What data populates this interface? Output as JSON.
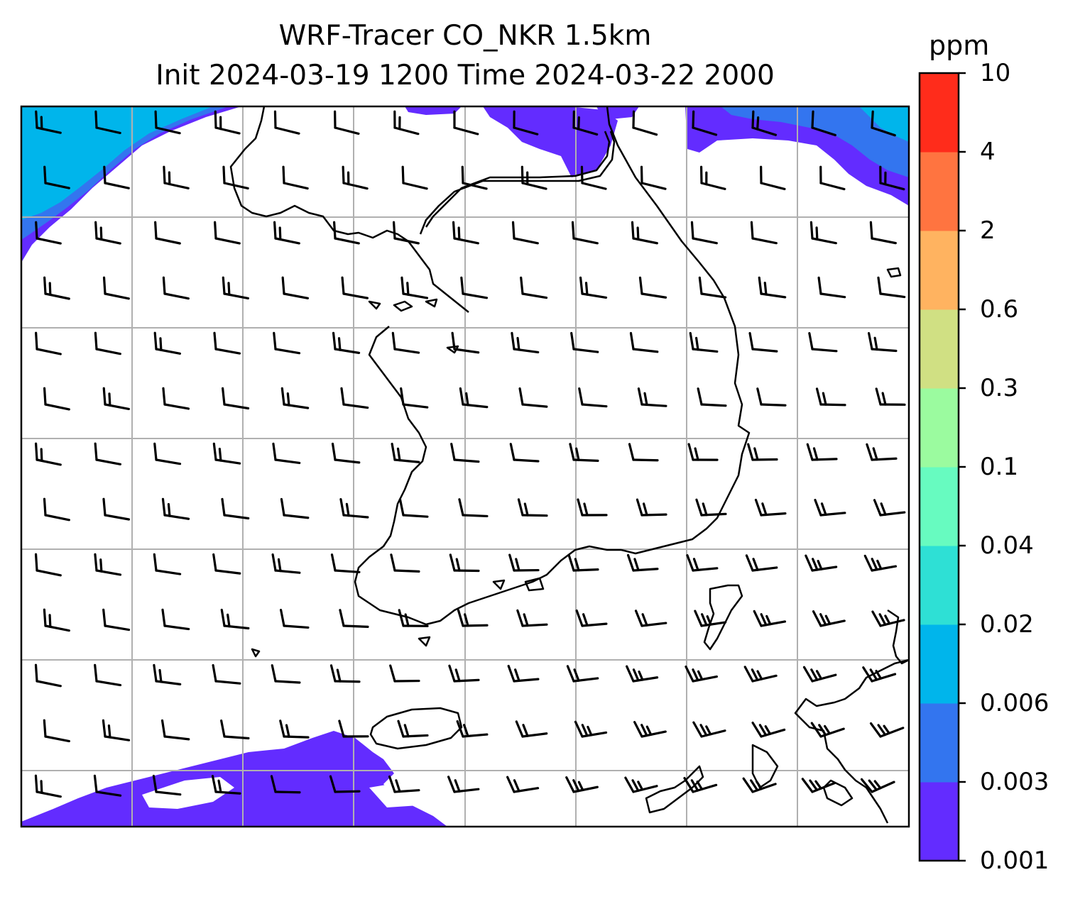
{
  "title": {
    "line1": "WRF-Tracer CO_NKR 1.5km",
    "line2": "Init 2024-03-19 1200 Time 2024-03-22 2000"
  },
  "map": {
    "field": "CO_NKR tracer concentration",
    "overlay": "wind barbs",
    "gridlines": true,
    "coastlines": true,
    "filled_regions": [
      {
        "location": "top-left",
        "level_colors": [
          "#632cff",
          "#3375ef",
          "#00b5eb"
        ]
      },
      {
        "location": "top-center",
        "level_colors": [
          "#632cff"
        ]
      },
      {
        "location": "top-right",
        "level_colors": [
          "#632cff",
          "#3375ef",
          "#00b5eb"
        ]
      },
      {
        "location": "bottom-left",
        "level_colors": [
          "#632cff"
        ]
      }
    ]
  },
  "colorbar": {
    "unit": "ppm",
    "ticks": [
      "10",
      "4",
      "2",
      "0.6",
      "0.3",
      "0.1",
      "0.04",
      "0.02",
      "0.006",
      "0.003",
      "0.001"
    ],
    "colors": [
      "#632cff",
      "#3375ef",
      "#00b5eb",
      "#2ee0d5",
      "#67fbc0",
      "#9bfb9f",
      "#d0e083",
      "#ffb360",
      "#ff7440",
      "#ff2c1b"
    ]
  }
}
